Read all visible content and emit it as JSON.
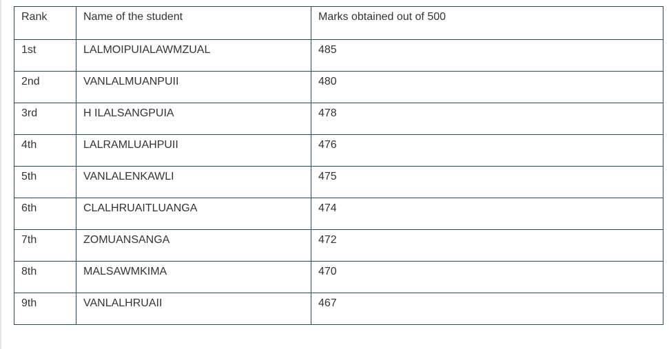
{
  "table": {
    "headers": {
      "rank": "Rank",
      "name": "Name of the student",
      "marks": "Marks obtained out of 500"
    },
    "rows": [
      {
        "rank": "1st",
        "name": "LALMOIPUIALAWMZUAL",
        "marks": "485"
      },
      {
        "rank": "2nd",
        "name": "VANLALMUANPUII",
        "marks": "480"
      },
      {
        "rank": "3rd",
        "name": "H ILALSANGPUIA",
        "marks": "478"
      },
      {
        "rank": "4th",
        "name": "LALRAMLUAHPUII",
        "marks": "476"
      },
      {
        "rank": "5th",
        "name": "VANLALENKAWLI",
        "marks": "475"
      },
      {
        "rank": "6th",
        "name": "CLALHRUAITLUANGA",
        "marks": "474"
      },
      {
        "rank": "7th",
        "name": "ZOMUANSANGA",
        "marks": "472"
      },
      {
        "rank": "8th",
        "name": "MALSAWMKIMA",
        "marks": "470"
      },
      {
        "rank": "9th",
        "name": "VANLALHRUAII",
        "marks": "467"
      }
    ]
  }
}
